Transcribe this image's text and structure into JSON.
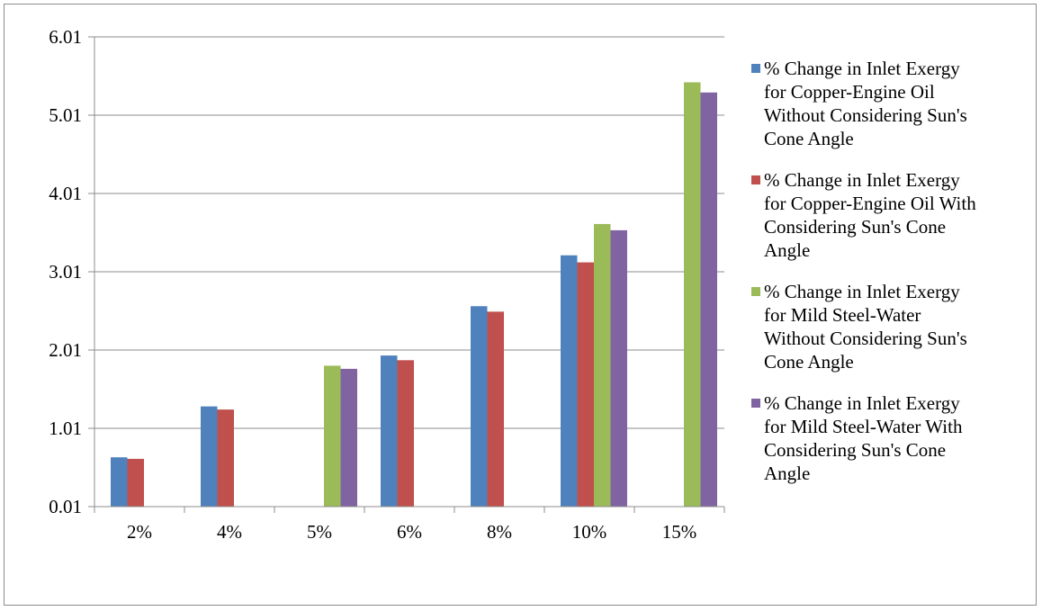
{
  "chart_data": {
    "type": "bar",
    "categories": [
      "2%",
      "4%",
      "5%",
      "6%",
      "8%",
      "10%",
      "15%"
    ],
    "series": [
      {
        "name": "% Change in Inlet Exergy\nfor Copper-Engine Oil\nWithout Considering Sun's\nCone Angle",
        "color": "#4f81bd",
        "values": [
          0.64,
          1.29,
          null,
          1.94,
          2.57,
          3.22,
          null
        ]
      },
      {
        "name": "% Change in Inlet Exergy\nfor Copper-Engine Oil With\nConsidering Sun's Cone\nAngle",
        "color": "#c0504d",
        "values": [
          0.62,
          1.25,
          null,
          1.88,
          2.5,
          3.13,
          null
        ]
      },
      {
        "name": "% Change in Inlet Exergy\nfor Mild Steel-Water\nWithout Considering Sun's\nCone Angle",
        "color": "#9bbb59",
        "values": [
          null,
          null,
          1.81,
          null,
          null,
          3.62,
          5.43
        ]
      },
      {
        "name": "% Change in Inlet Exergy\nfor Mild Steel-Water With\nConsidering Sun's Cone\nAngle",
        "color": "#8064a2",
        "values": [
          null,
          null,
          1.77,
          null,
          null,
          3.54,
          5.3
        ]
      }
    ],
    "y_ticks": [
      "6.01",
      "5.01",
      "4.01",
      "3.01",
      "2.01",
      "1.01",
      "0.01"
    ],
    "ylim": [
      0.01,
      6.01
    ],
    "grid": true,
    "legend_position": "right"
  }
}
